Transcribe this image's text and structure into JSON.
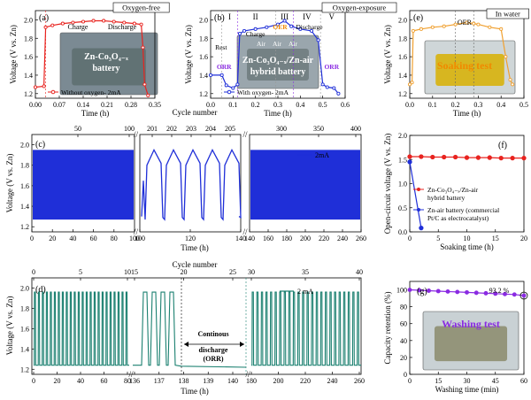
{
  "chart_data": [
    {
      "panel": "a",
      "type": "line",
      "xlabel": "Time (h)",
      "ylabel": "Voltage (V vs. Zn)",
      "xlim": [
        0,
        0.35
      ],
      "ylim": [
        1.15,
        2.1
      ],
      "xticks": [
        "0.00",
        "0.07",
        "0.14",
        "0.21",
        "0.28",
        "0.35"
      ],
      "yticks": [
        "1.2",
        "1.4",
        "1.6",
        "1.8",
        "2.0"
      ],
      "title_box": "Oxygen-free",
      "annotations": [
        "Charge",
        "Discharge"
      ],
      "image_label": [
        "Zn-Co₃O₄₋ₓ",
        "battery"
      ],
      "legend": "Without oxygen- 2mA",
      "series": [
        {
          "name": "Without oxygen- 2mA",
          "color": "#e8231f",
          "x": [
            0,
            0.025,
            0.03,
            0.05,
            0.08,
            0.11,
            0.14,
            0.17,
            0.2,
            0.23,
            0.26,
            0.29,
            0.31,
            0.315,
            0.32,
            0.33
          ],
          "y": [
            1.27,
            1.28,
            1.92,
            1.94,
            1.96,
            1.97,
            1.98,
            1.99,
            1.99,
            1.98,
            1.97,
            1.96,
            1.95,
            1.7,
            1.3,
            1.18
          ]
        }
      ]
    },
    {
      "panel": "b",
      "type": "line",
      "xlabel": "Time (h)",
      "ylabel": "Voltage (V vs. Zn)",
      "xlim": [
        0,
        0.6
      ],
      "ylim": [
        1.15,
        2.1
      ],
      "xticks": [
        "0.0",
        "0.1",
        "0.2",
        "0.3",
        "0.4",
        "0.5",
        "0.6"
      ],
      "yticks": [
        "1.2",
        "1.4",
        "1.6",
        "1.8",
        "2.0"
      ],
      "title_box": "Oxygen-exposure",
      "regions": [
        "I",
        "II",
        "III",
        "IV",
        "V"
      ],
      "annotations": [
        "Rest",
        "ORR",
        "Charge",
        "OER",
        "Discharge",
        "ORR",
        "Air",
        "Air",
        "Air"
      ],
      "image_label": [
        "Zn-Co₃O₄₋ₓ/Zn-air",
        "hybrid battery"
      ],
      "legend": "With oxygen- 2mA",
      "series": [
        {
          "name": "With oxygen- 2mA",
          "color": "#1f2fd8",
          "x": [
            0,
            0.05,
            0.07,
            0.1,
            0.12,
            0.13,
            0.15,
            0.2,
            0.25,
            0.3,
            0.33,
            0.36,
            0.4,
            0.45,
            0.48,
            0.5,
            0.52,
            0.55,
            0.57
          ],
          "y": [
            1.4,
            1.4,
            1.29,
            1.26,
            1.3,
            1.85,
            1.88,
            1.9,
            1.92,
            1.95,
            1.99,
            1.93,
            1.9,
            1.88,
            1.78,
            1.3,
            1.27,
            1.26,
            1.2
          ]
        }
      ]
    },
    {
      "panel": "e",
      "type": "line",
      "xlabel": "Time (h)",
      "ylabel": "Voltage (V vs. Zn)",
      "xlim": [
        0,
        0.5
      ],
      "ylim": [
        1.15,
        2.1
      ],
      "xticks": [
        "0.0",
        "0.1",
        "0.2",
        "0.3",
        "0.4",
        "0.5"
      ],
      "yticks": [
        "1.2",
        "1.4",
        "1.6",
        "1.8",
        "2.0"
      ],
      "title_box": "In water",
      "annotations": [
        "OER"
      ],
      "inset_label": "Soaking test",
      "series": [
        {
          "name": "In water",
          "color": "#f0a030",
          "x": [
            0,
            0.01,
            0.015,
            0.05,
            0.1,
            0.15,
            0.2,
            0.25,
            0.28,
            0.3,
            0.35,
            0.4,
            0.42,
            0.44,
            0.45
          ],
          "y": [
            1.3,
            1.32,
            1.88,
            1.9,
            1.92,
            1.93,
            1.95,
            1.97,
            1.96,
            1.95,
            1.92,
            1.9,
            1.6,
            1.35,
            1.3
          ]
        }
      ]
    },
    {
      "panel": "c",
      "type": "line",
      "xlabel": "Time (h)",
      "ylabel": "Voltage (V vs. Zn)",
      "top_axis_label": "Cycle number",
      "ylim": [
        1.15,
        2.1
      ],
      "yticks": [
        "1.2",
        "1.4",
        "1.6",
        "1.8",
        "2.0"
      ],
      "segments": [
        {
          "xlim": [
            0,
            100
          ],
          "xticks": [
            "0",
            "20",
            "40",
            "60",
            "80",
            "100"
          ],
          "top_ticks": [
            "50",
            "100"
          ],
          "style": "dense"
        },
        {
          "xlim": [
            100,
            140
          ],
          "xticks": [
            "100",
            "120",
            "140"
          ],
          "top_ticks": [
            "201",
            "202",
            "203",
            "204",
            "205"
          ],
          "style": "cycles"
        },
        {
          "xlim": [
            140,
            260
          ],
          "xticks": [
            "140",
            "160",
            "180",
            "200",
            "220",
            "240",
            "260"
          ],
          "top_ticks": [
            "300",
            "350",
            "400"
          ],
          "style": "dense"
        }
      ],
      "legend": "2mA",
      "series": [
        {
          "name": "2mA",
          "color": "#1f2fd8",
          "charge_v": 1.95,
          "discharge_v": 1.27
        }
      ]
    },
    {
      "panel": "f",
      "type": "line",
      "xlabel": "Soaking time (h)",
      "ylabel": "Open-circuit voltage (V vs. Zn)",
      "xlim": [
        0,
        20
      ],
      "ylim": [
        0,
        2.0
      ],
      "xticks": [
        "0",
        "5",
        "10",
        "15",
        "20"
      ],
      "yticks": [
        "0.0",
        "0.5",
        "1.0",
        "1.5",
        "2.0"
      ],
      "series": [
        {
          "name": "Zn-Co₃O₄₋ₓ/Zn-air hybrid battery",
          "color": "#e8231f",
          "marker": "circle",
          "x": [
            0,
            2,
            4,
            6,
            8,
            10,
            12,
            14,
            16,
            18,
            20
          ],
          "y": [
            1.56,
            1.56,
            1.55,
            1.55,
            1.55,
            1.54,
            1.54,
            1.54,
            1.53,
            1.53,
            1.53
          ]
        },
        {
          "name": "Zn-air battery (commercial Pt/C as electrocatalyst)",
          "color": "#1f2fd8",
          "marker": "circle",
          "x": [
            0,
            2
          ],
          "y": [
            1.45,
            0.08
          ]
        }
      ],
      "legend_lines": [
        [
          "Zn-Co₃O₄₋ₓ/Zn-air",
          "hybrid battery"
        ],
        [
          "Zn-air battery (commercial",
          "Pt/C as electrocatalyst)"
        ]
      ]
    },
    {
      "panel": "d",
      "type": "line",
      "xlabel": "Time (h)",
      "ylabel": "Voltage (V vs. Zn)",
      "top_axis_label": "Cycle number",
      "ylim": [
        1.15,
        2.1
      ],
      "yticks": [
        "1.2",
        "1.4",
        "1.6",
        "1.8",
        "2.0"
      ],
      "segments": [
        {
          "xticks": [
            "0",
            "20",
            "40",
            "60",
            "80"
          ],
          "top_ticks": [
            "0",
            "5",
            "10"
          ]
        },
        {
          "xticks": [
            "136",
            "137",
            "138",
            "139",
            "140"
          ],
          "top_ticks": [
            "15",
            "20",
            "25"
          ]
        },
        {
          "xticks": [
            "180",
            "200",
            "220",
            "240",
            "260"
          ],
          "top_ticks": [
            "30",
            "35",
            "40"
          ]
        }
      ],
      "annotation": [
        "Continous",
        "discharge",
        "(ORR)"
      ],
      "legend": "2 mA",
      "series": [
        {
          "name": "2 mA",
          "color": "#1b8070",
          "charge_v": 1.96,
          "discharge_v": 1.24
        }
      ]
    },
    {
      "panel": "g",
      "type": "line",
      "xlabel": "Washing time (min)",
      "ylabel": "Capacity retention (%)",
      "xlim": [
        0,
        60
      ],
      "ylim": [
        0,
        110
      ],
      "xticks": [
        "0",
        "15",
        "30",
        "45",
        "60"
      ],
      "yticks": [
        "0",
        "20",
        "40",
        "60",
        "80",
        "100"
      ],
      "annotation": "93.2 %",
      "inset_label": "Washing test",
      "series": [
        {
          "name": "Capacity retention",
          "color": "#8a2be2",
          "x": [
            0,
            5,
            10,
            15,
            20,
            25,
            30,
            35,
            40,
            45,
            50,
            55,
            60
          ],
          "y": [
            100,
            99.5,
            99,
            98.5,
            98,
            97.5,
            97,
            96.5,
            96,
            95.5,
            95,
            94.5,
            93.2
          ]
        }
      ]
    }
  ],
  "panel_labels": [
    "(a)",
    "(b)",
    "(c)",
    "(d)",
    "(e)",
    "(f)",
    "(g)"
  ]
}
